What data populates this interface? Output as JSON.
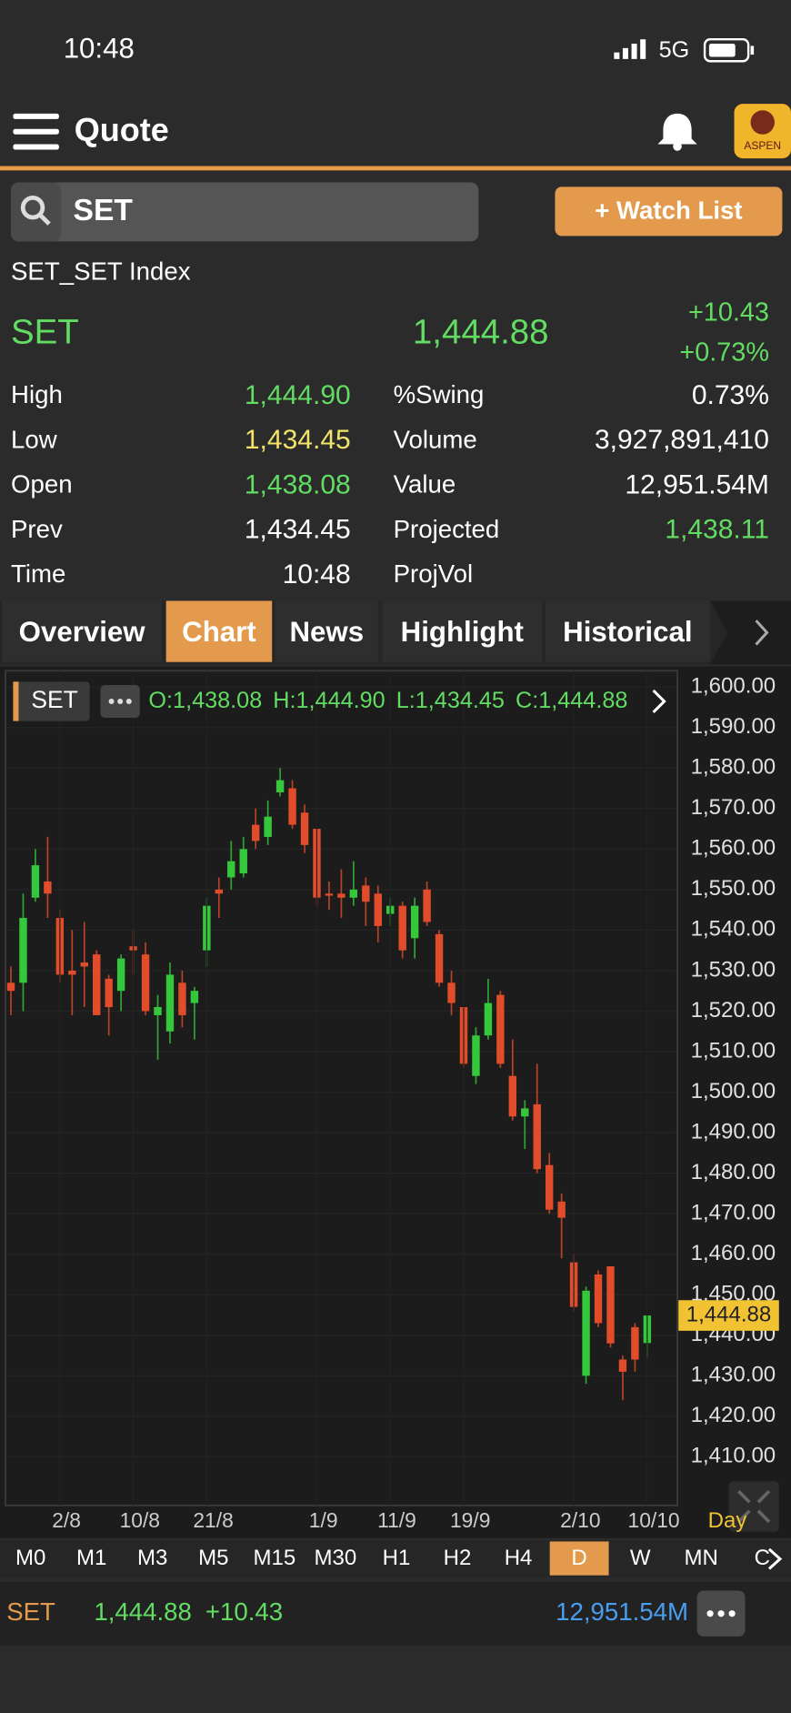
{
  "status": {
    "time": "10:48",
    "network": "5G"
  },
  "header": {
    "title": "Quote",
    "logo": "ASPEN"
  },
  "search": {
    "query": "SET",
    "button": "+ Watch List"
  },
  "quote": {
    "name": "SET_SET Index",
    "symbol": "SET",
    "price": "1,444.88",
    "change": "+10.43",
    "change_pct": "+0.73%",
    "stats": [
      {
        "label": "High",
        "value": "1,444.90",
        "color": "#62dc62"
      },
      {
        "label": "Low",
        "value": "1,434.45",
        "color": "#f2e46a"
      },
      {
        "label": "Open",
        "value": "1,438.08",
        "color": "#62dc62"
      },
      {
        "label": "Prev",
        "value": "1,434.45",
        "color": "#ffffff"
      },
      {
        "label": "Time",
        "value": "10:48",
        "color": "#ffffff"
      }
    ],
    "stats2": [
      {
        "label": "%Swing",
        "value": "0.73%",
        "color": "#ffffff"
      },
      {
        "label": "Volume",
        "value": "3,927,891,410",
        "color": "#ffffff"
      },
      {
        "label": "Value",
        "value": "12,951.54M",
        "color": "#ffffff"
      },
      {
        "label": "Projected",
        "value": "1,438.11",
        "color": "#62dc62"
      },
      {
        "label": "ProjVol"
      }
    ]
  },
  "tabs": [
    "Overview",
    "Chart",
    "News",
    "Highlight",
    "Historical"
  ],
  "active_tab": "Chart",
  "chart_data": {
    "type": "candlestick",
    "symbol_label": "SET",
    "ohlc_text": [
      "O:1,438.08",
      "H:1,444.90",
      "L:1,434.45",
      "C:1,444.88"
    ],
    "categories": [
      null,
      null,
      null,
      null,
      "2/8",
      null,
      null,
      null,
      null,
      null,
      "10/8",
      null,
      null,
      null,
      null,
      null,
      "21/8",
      null,
      null,
      null,
      null,
      null,
      null,
      null,
      null,
      "1/9",
      null,
      null,
      null,
      null,
      null,
      "11/9",
      null,
      null,
      null,
      null,
      null,
      "19/9",
      null,
      null,
      null,
      null,
      null,
      null,
      null,
      null,
      "2/10",
      null,
      null,
      null,
      null,
      null,
      "10/10"
    ],
    "open": [
      1527,
      1527,
      1548,
      1552,
      1543,
      1530,
      1532,
      1534,
      1528,
      1525,
      1536,
      1534,
      1519,
      1515,
      1527,
      1522,
      1535,
      1550,
      1553,
      1554,
      1566,
      1563,
      1574,
      1575,
      1569,
      1565,
      1549,
      1549,
      1548,
      1551,
      1549,
      1544,
      1546,
      1538,
      1550,
      1539,
      1527,
      1521,
      1504,
      1514,
      1524,
      1504,
      1494,
      1497,
      1482,
      1473,
      1458,
      1430,
      1455,
      1457,
      1434,
      1442,
      1438.08
    ],
    "high": [
      1531,
      1549,
      1560,
      1563,
      1545,
      1540,
      1542,
      1535,
      1529,
      1534,
      1540,
      1537,
      1524,
      1532,
      1530,
      1526,
      1548,
      1553,
      1562,
      1563,
      1570,
      1572,
      1580,
      1577,
      1571,
      1565,
      1552,
      1555,
      1557,
      1553,
      1551,
      1548,
      1547,
      1548,
      1552,
      1540,
      1530,
      1521,
      1516,
      1528,
      1525,
      1513,
      1498,
      1507,
      1485,
      1475,
      1460,
      1452,
      1456,
      1457,
      1435,
      1443,
      1444.9
    ],
    "low": [
      1519,
      1520,
      1547,
      1543,
      1527,
      1519,
      1521,
      1519,
      1514,
      1520,
      1529,
      1519,
      1508,
      1512,
      1516,
      1513,
      1531,
      1543,
      1550,
      1553,
      1560,
      1561,
      1573,
      1565,
      1559,
      1546,
      1545,
      1543,
      1546,
      1541,
      1537,
      1541,
      1533,
      1533,
      1541,
      1526,
      1519,
      1506,
      1502,
      1513,
      1506,
      1493,
      1486,
      1480,
      1470,
      1459,
      1446,
      1428,
      1442,
      1437,
      1424,
      1431,
      1434.45
    ],
    "close": [
      1525,
      1543,
      1556,
      1549,
      1529,
      1529,
      1531,
      1519,
      1521,
      1533,
      1535,
      1520,
      1521,
      1529,
      1519,
      1525,
      1546,
      1549,
      1557,
      1560,
      1562,
      1568,
      1577,
      1566,
      1561,
      1548,
      1548.5,
      1548,
      1550,
      1547,
      1541,
      1546,
      1535,
      1546,
      1542,
      1527,
      1522,
      1507,
      1514,
      1522,
      1507,
      1494,
      1496,
      1481,
      1471,
      1469,
      1447,
      1451,
      1443,
      1438,
      1431,
      1434,
      1444.88
    ],
    "up_color": "#35c83c",
    "down_color": "#e14c2b",
    "last_label": "1,444.88",
    "ylim": [
      1398,
      1604
    ],
    "yticks": [
      {
        "value": 1600,
        "label": "1,600.00"
      },
      {
        "value": 1590,
        "label": "1,590.00"
      },
      {
        "value": 1580,
        "label": "1,580.00"
      },
      {
        "value": 1570,
        "label": "1,570.00"
      },
      {
        "value": 1560,
        "label": "1,560.00"
      },
      {
        "value": 1550,
        "label": "1,550.00"
      },
      {
        "value": 1540,
        "label": "1,540.00"
      },
      {
        "value": 1530,
        "label": "1,530.00"
      },
      {
        "value": 1520,
        "label": "1,520.00"
      },
      {
        "value": 1510,
        "label": "1,510.00"
      },
      {
        "value": 1500,
        "label": "1,500.00"
      },
      {
        "value": 1490,
        "label": "1,490.00"
      },
      {
        "value": 1480,
        "label": "1,480.00"
      },
      {
        "value": 1470,
        "label": "1,470.00"
      },
      {
        "value": 1460,
        "label": "1,460.00"
      },
      {
        "value": 1450,
        "label": "1,450.00"
      },
      {
        "value": 1440,
        "label": "1,440.00"
      },
      {
        "value": 1430,
        "label": "1,430.00"
      },
      {
        "value": 1420,
        "label": "1,420.00"
      },
      {
        "value": 1410,
        "label": "1,410.00"
      }
    ],
    "grid": true,
    "period": "Day"
  },
  "timeframes": [
    "M0",
    "M1",
    "M3",
    "M5",
    "M15",
    "M30",
    "H1",
    "H2",
    "H4",
    "D",
    "W",
    "MN",
    "C"
  ],
  "active_timeframe": "D",
  "footer": {
    "symbol": "SET",
    "price": "1,444.88",
    "change": "+10.43",
    "value": "12,951.54M"
  }
}
